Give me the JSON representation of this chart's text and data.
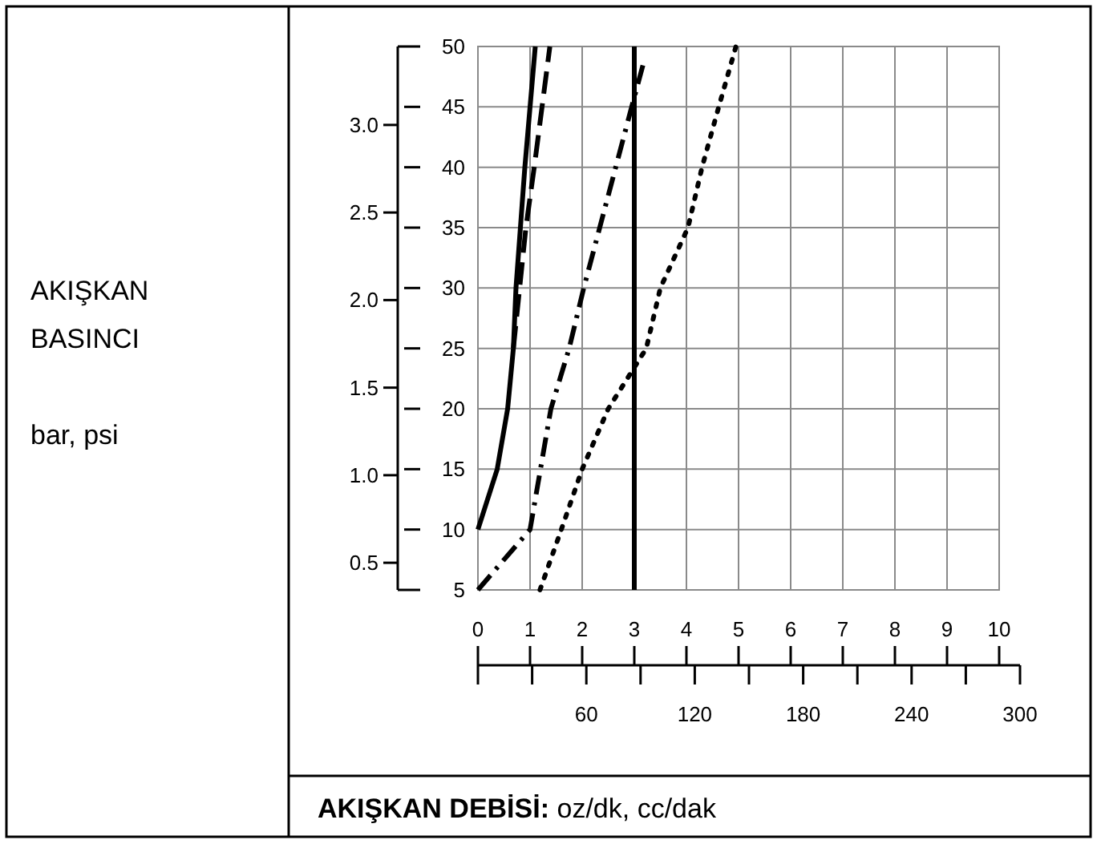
{
  "chart_data": {
    "type": "line",
    "annotations": [
      "AKIŞKAN\nBASINCI\n\nbar, psi"
    ],
    "xlabel": "AKIŞKAN DEBİSİ: oz/dk, cc/dak",
    "xlim": [
      0,
      10
    ],
    "xticks": [
      0,
      1,
      2,
      3,
      4,
      5,
      6,
      7,
      8,
      9,
      10
    ],
    "x2lim": [
      0,
      300
    ],
    "x2ticks": [
      {
        "value": 0,
        "label": null
      },
      {
        "value": 30,
        "label": null
      },
      60,
      {
        "value": 90,
        "label": null
      },
      120,
      {
        "value": 150,
        "label": null
      },
      180,
      {
        "value": 210,
        "label": null
      },
      240,
      {
        "value": 270,
        "label": null
      },
      300
    ],
    "ylim": [
      5,
      50
    ],
    "yticks": [
      5,
      10,
      15,
      20,
      25,
      30,
      35,
      40,
      45,
      50
    ],
    "y2lim": [
      0.345,
      3.448
    ],
    "y2ticks": [
      {
        "value": 0.5,
        "label": "0.5"
      },
      {
        "value": 1,
        "label": "1.0"
      },
      {
        "value": 1.5,
        "label": "1.5"
      },
      {
        "value": 2,
        "label": "2.0"
      },
      {
        "value": 2.5,
        "label": "2.5"
      },
      {
        "value": 3,
        "label": "3.0"
      }
    ],
    "grid": true,
    "series": [
      {
        "color": "#000000",
        "line_style": "solid",
        "x": [
          0,
          0.37,
          0.57,
          0.68,
          0.73,
          0.9,
          1.1
        ],
        "values": [
          10,
          15,
          20,
          25,
          30,
          40,
          50
        ]
      },
      {
        "color": "#000000",
        "line_style": "dashed",
        "x": [
          0.68,
          0.8,
          0.92,
          1.08,
          1.23,
          1.38
        ],
        "values": [
          25,
          30,
          35,
          40,
          45,
          50
        ]
      },
      {
        "color": "#000000",
        "line_style": "dashdot",
        "x": [
          0,
          1.0,
          1.2,
          1.4,
          1.75,
          2.03,
          2.95,
          3.2
        ],
        "values": [
          5,
          10,
          15,
          20,
          25,
          30,
          45,
          49
        ]
      },
      {
        "color": "#000000",
        "line_style": "solid",
        "x": [
          3,
          3
        ],
        "values": [
          5,
          50
        ]
      },
      {
        "color": "#000000",
        "line_style": "dotted",
        "x": [
          1.19,
          1.6,
          2.0,
          2.5,
          3.23,
          3.5,
          4.03,
          4.3,
          4.62,
          4.95
        ],
        "values": [
          5,
          10,
          15,
          20,
          25,
          30,
          35,
          40,
          45,
          50
        ]
      }
    ]
  }
}
